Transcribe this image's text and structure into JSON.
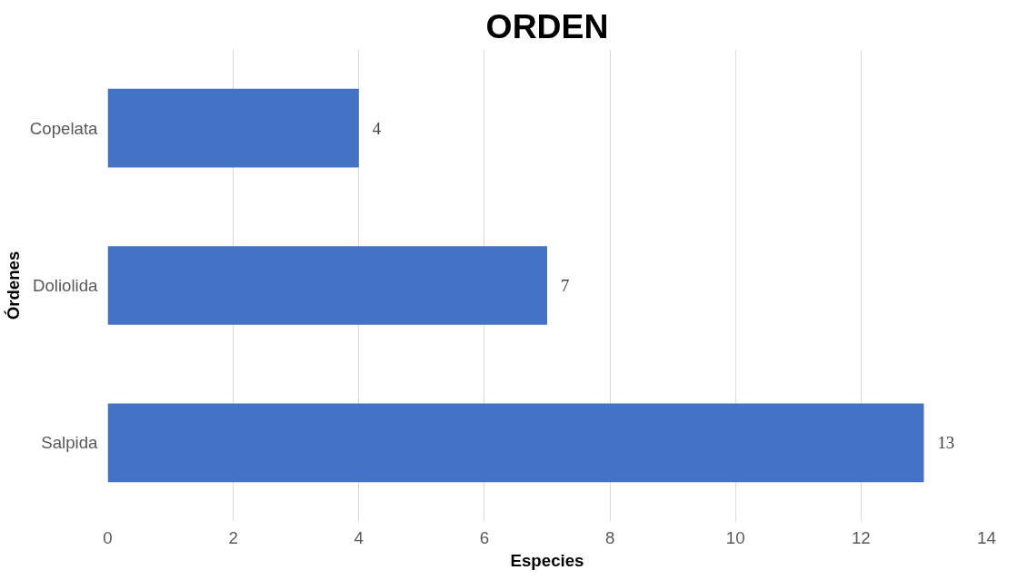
{
  "chart_data": {
    "type": "bar",
    "orientation": "horizontal",
    "title": "ORDEN",
    "xlabel": "Especies",
    "ylabel": "Órdenes",
    "categories": [
      "Copelata",
      "Doliolida",
      "Salpida"
    ],
    "values": [
      4,
      7,
      13
    ],
    "color": "#4472c4",
    "xlim": [
      0,
      14
    ],
    "xticks": [
      0,
      2,
      4,
      6,
      8,
      10,
      12,
      14
    ],
    "grid": "x",
    "data_labels": true
  }
}
